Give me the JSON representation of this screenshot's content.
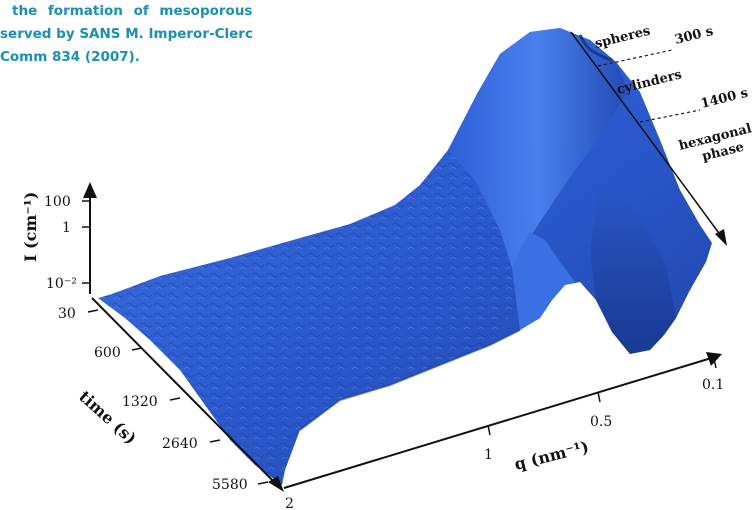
{
  "caption": {
    "line1": "the formation of mesoporous",
    "line2": "served by SANS M. Imperor-Clerc",
    "line3": "Comm 834 (2007)."
  },
  "chart_data": {
    "type": "surface",
    "zlabel": "I (cm⁻¹)",
    "zticks": [
      "100",
      "1",
      "10⁻²"
    ],
    "ylabel": "time (s)",
    "yticks": [
      "30",
      "600",
      "1320",
      "2640",
      "5580"
    ],
    "xlabel": "q (nm⁻¹)",
    "xticks": [
      "0.1",
      "0.5",
      "1",
      "2"
    ],
    "phases": [
      {
        "label": "spheres",
        "time": "300 s"
      },
      {
        "label": "cylinders",
        "time": "1400 s"
      },
      {
        "label": "hexagonal phase",
        "time": ""
      }
    ],
    "surface_color": "#2d5fd4"
  }
}
